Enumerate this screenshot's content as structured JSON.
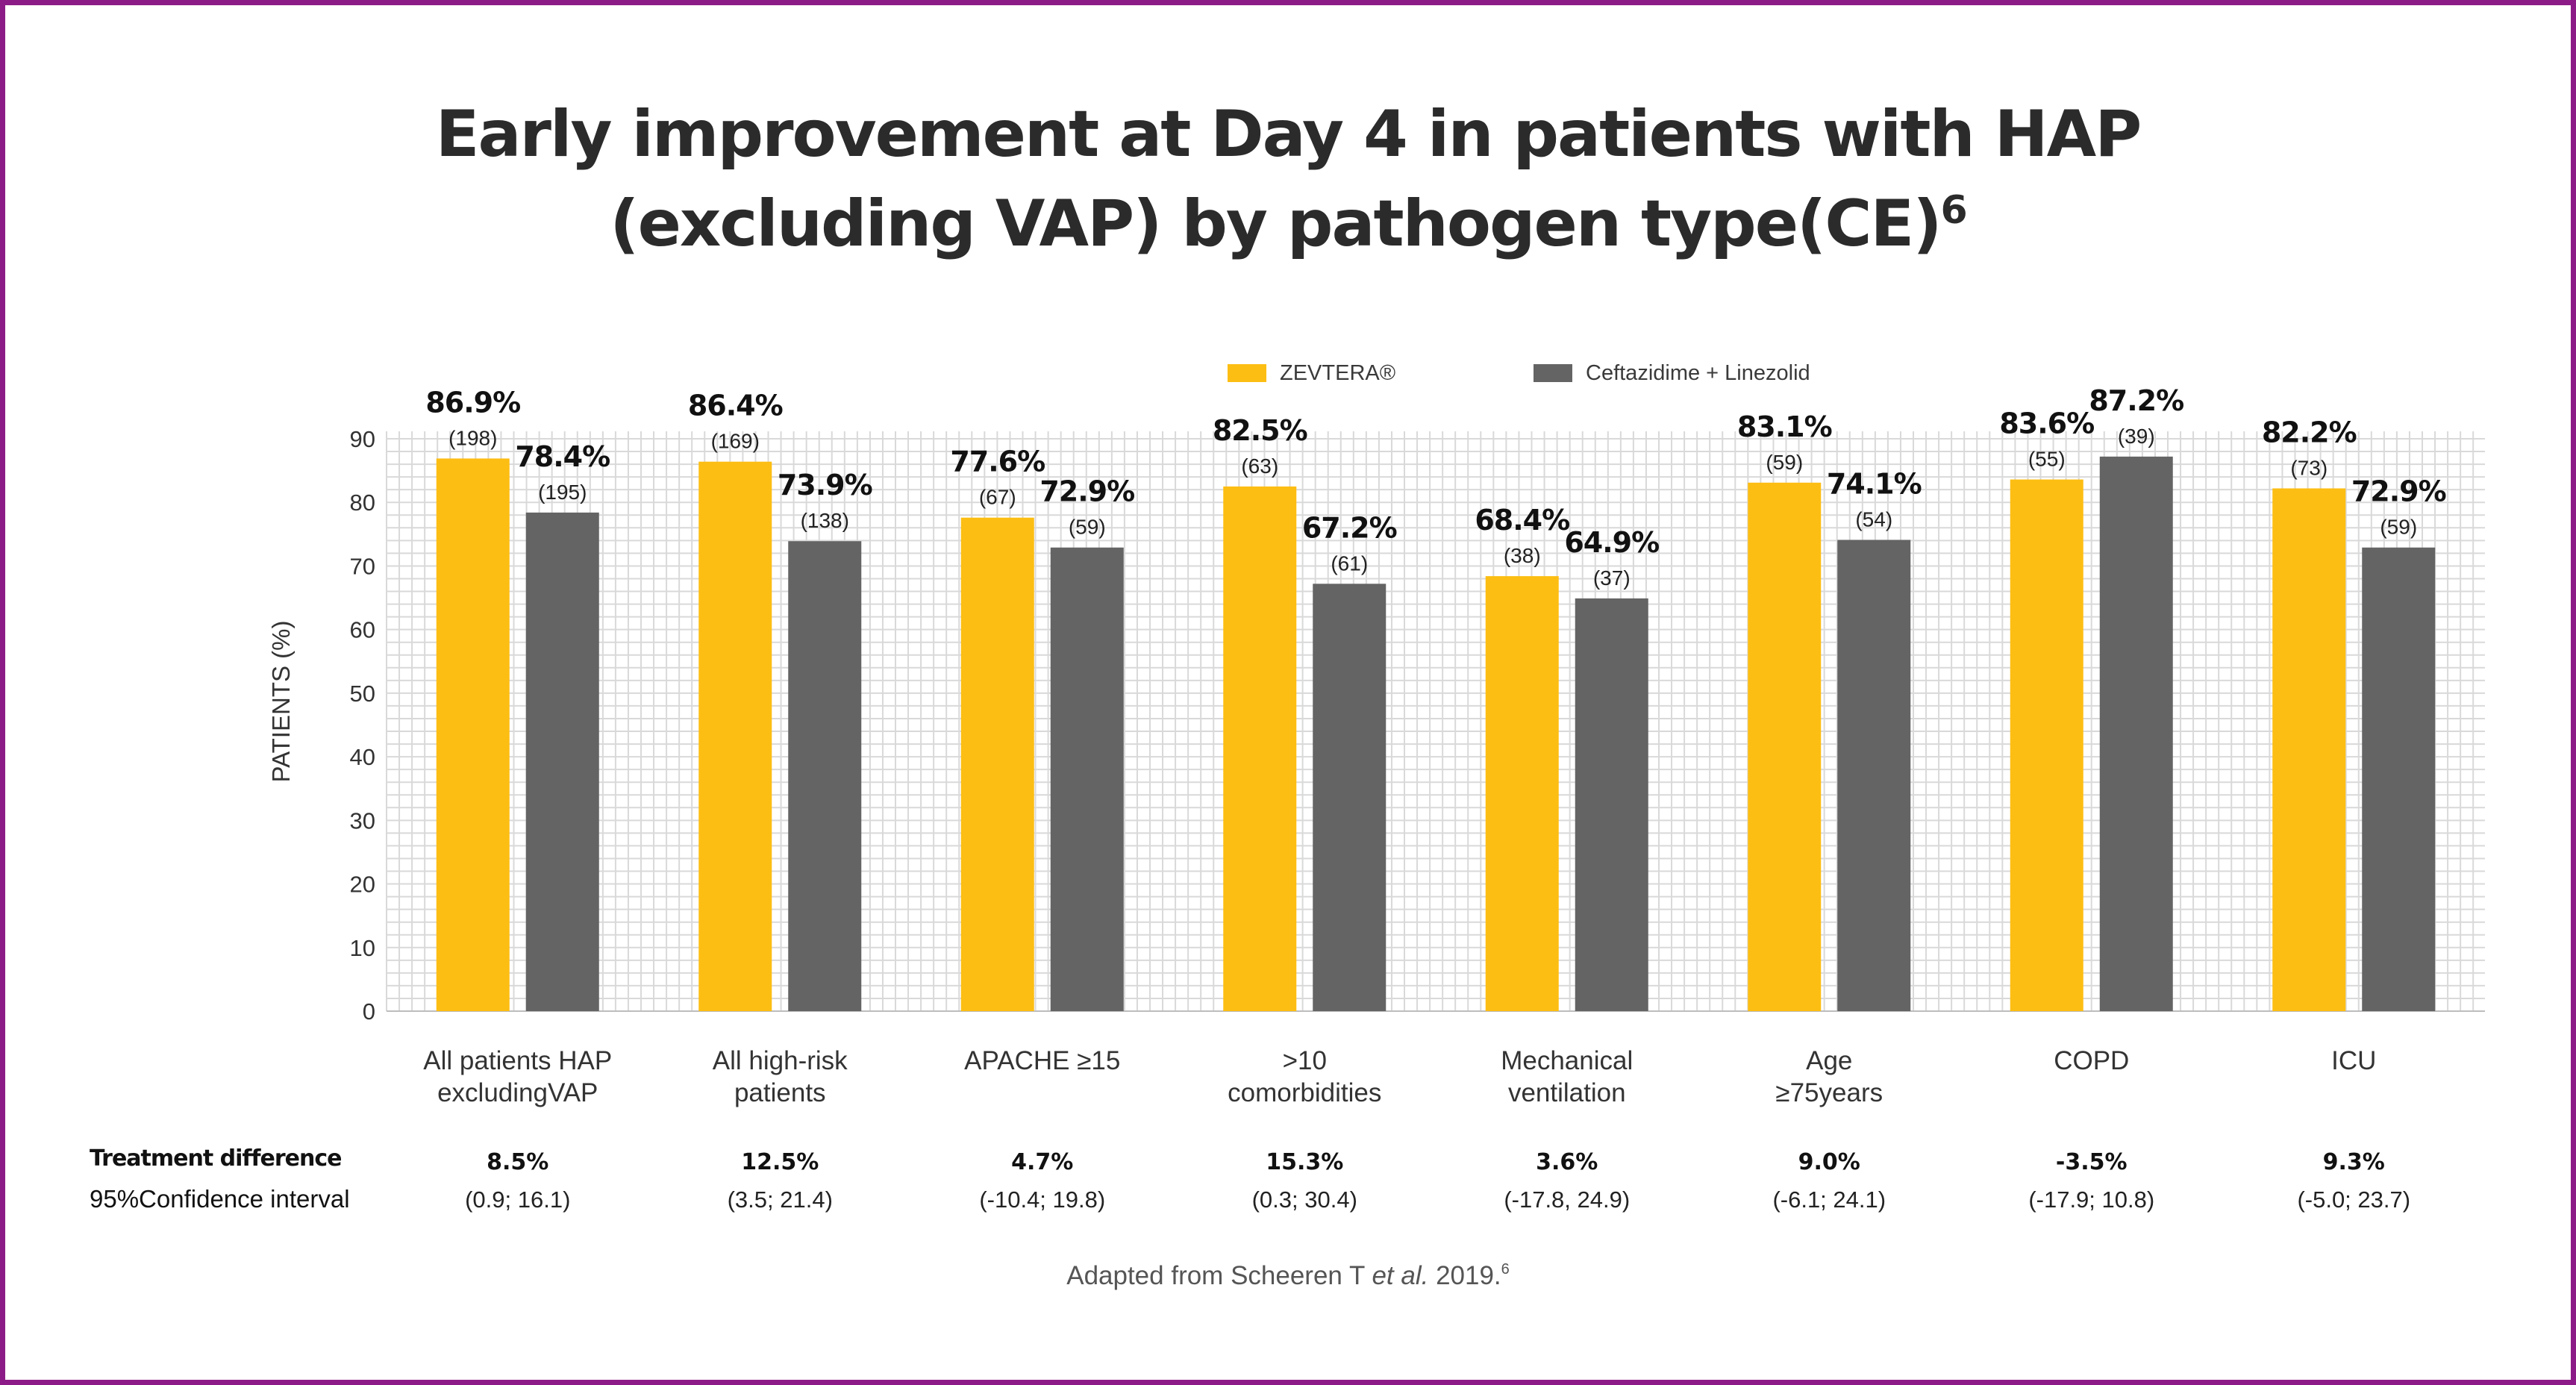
{
  "title_line1": "Early improvement at Day 4 in patients with HAP",
  "title_line2": "(excluding VAP) by pathogen type(CE)",
  "title_sup": "6",
  "legend": {
    "zevtera": "ZEVTERA®",
    "comparator": "Ceftazidime + Linezolid"
  },
  "colors": {
    "zevtera": "#FDBE13",
    "comparator": "#646464",
    "grid": "#d9d9d9",
    "border": "#8c1b87"
  },
  "chart_data": {
    "type": "bar",
    "ylabel": "PATIENTS (%)",
    "ylim": [
      0,
      90
    ],
    "yticks": [
      "0",
      "10",
      "20",
      "30",
      "40",
      "50",
      "60",
      "70",
      "80",
      "90"
    ],
    "grid": true,
    "legend_position": "top",
    "categories": [
      [
        "All patients HAP",
        "excludingVAP"
      ],
      [
        "All high-risk",
        "patients"
      ],
      [
        "APACHE ≥15"
      ],
      [
        ">10",
        "comorbidities"
      ],
      [
        "Mechanical",
        "ventilation"
      ],
      [
        "Age",
        "≥75years"
      ],
      [
        "COPD"
      ],
      [
        "ICU"
      ]
    ],
    "series": [
      {
        "name": "ZEVTERA®",
        "values": [
          86.9,
          86.4,
          77.6,
          82.5,
          68.4,
          83.1,
          83.6,
          82.2
        ],
        "labels": [
          "86.9%",
          "86.4%",
          "77.6%",
          "82.5%",
          "68.4%",
          "83.1%",
          "83.6%",
          "82.2%"
        ],
        "n": [
          "(198)",
          "(169)",
          "(67)",
          "(63)",
          "(38)",
          "(59)",
          "(55)",
          "(73)"
        ]
      },
      {
        "name": "Ceftazidime + Linezolid",
        "values": [
          78.4,
          73.9,
          72.9,
          67.2,
          64.9,
          74.1,
          87.2,
          72.9
        ],
        "labels": [
          "78.4%",
          "73.9%",
          "72.9%",
          "67.2%",
          "64.9%",
          "74.1%",
          "87.2%",
          "72.9%"
        ],
        "n": [
          "(195)",
          "(138)",
          "(59)",
          "(61)",
          "(37)",
          "(54)",
          "(39)",
          "(59)"
        ]
      }
    ]
  },
  "treatment": {
    "label": "Treatment difference",
    "ci_label": "95%Confidence interval",
    "differences": [
      "8.5%",
      "12.5%",
      "4.7%",
      "15.3%",
      "3.6%",
      "9.0%",
      "-3.5%",
      "9.3%"
    ],
    "intervals": [
      "(0.9; 16.1)",
      "(3.5; 21.4)",
      "(-10.4; 19.8)",
      "(0.3; 30.4)",
      "(-17.8, 24.9)",
      "(-6.1; 24.1)",
      "(-17.9; 10.8)",
      "(-5.0; 23.7)"
    ]
  },
  "source": {
    "prefix": "Adapted from Scheeren T ",
    "italic": "et al.",
    "suffix": " 2019.",
    "sup": "6"
  }
}
